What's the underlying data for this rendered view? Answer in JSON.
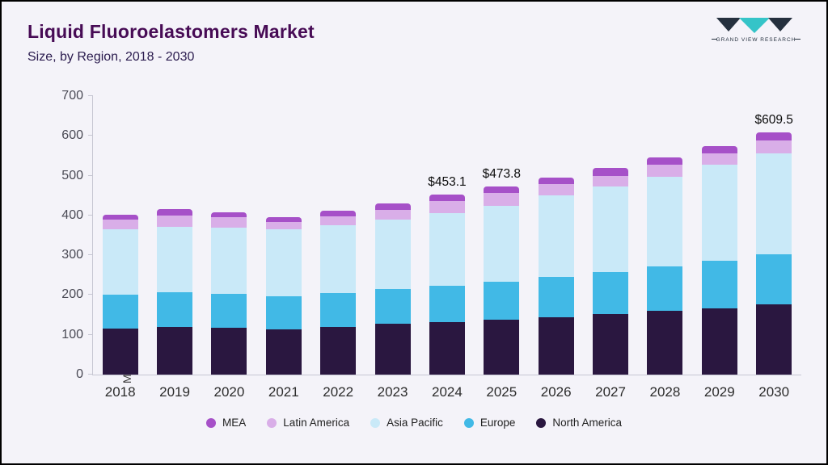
{
  "header": {
    "title": "Liquid Fluoroelastomers Market",
    "subtitle": "Size, by Region, 2018 - 2030",
    "logo_text": "GRAND VIEW RESEARCH"
  },
  "chart_data": {
    "type": "bar",
    "stacked": true,
    "title": "Liquid Fluoroelastomers Market Size, by Region, 2018 - 2030",
    "xlabel": "",
    "ylabel": "Market Size (US$M)",
    "ylim": [
      0,
      700
    ],
    "ytick_step": 100,
    "grid": false,
    "legend_position": "bottom",
    "categories": [
      "2018",
      "2019",
      "2020",
      "2021",
      "2022",
      "2023",
      "2024",
      "2025",
      "2026",
      "2027",
      "2028",
      "2029",
      "2030"
    ],
    "series": [
      {
        "name": "North America",
        "color": "#2a1740",
        "values": [
          115,
          120,
          118,
          113,
          120,
          127,
          131,
          137,
          145,
          152,
          160,
          167,
          177
        ]
      },
      {
        "name": "Europe",
        "color": "#41b9e6",
        "values": [
          85,
          87,
          85,
          84,
          85,
          88,
          93,
          97,
          101,
          106,
          112,
          120,
          125
        ]
      },
      {
        "name": "Asia Pacific",
        "color": "#c9e9f8",
        "values": [
          165,
          165,
          167,
          168,
          170,
          175,
          181,
          191,
          204,
          214,
          225,
          240,
          255
        ]
      },
      {
        "name": "Latin America",
        "color": "#d9aee8",
        "values": [
          25,
          28,
          25,
          18,
          23,
          25,
          32,
          32,
          28,
          28,
          30,
          29,
          31
        ]
      },
      {
        "name": "MEA",
        "color": "#a650c8",
        "values": [
          12,
          15,
          13,
          12,
          14,
          15,
          16.1,
          16.8,
          17,
          20,
          18,
          19,
          21.5
        ]
      }
    ],
    "legend": [
      "MEA",
      "Latin America",
      "Asia Pacific",
      "Europe",
      "North America"
    ],
    "value_labels": {
      "2024": "$453.1",
      "2025": "$473.8",
      "2030": "$609.5"
    }
  }
}
